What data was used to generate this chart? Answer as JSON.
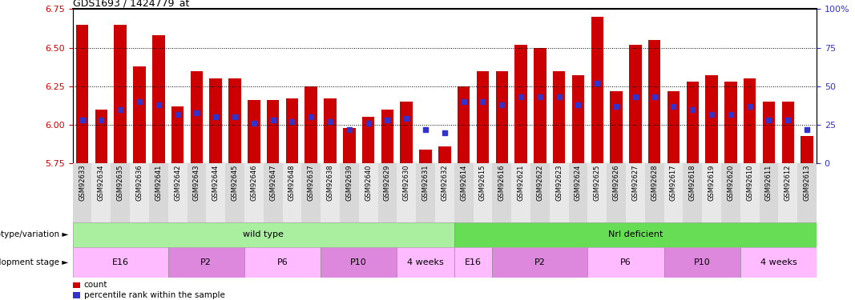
{
  "title": "GDS1693 / 1424779_at",
  "samples": [
    "GSM92633",
    "GSM92634",
    "GSM92635",
    "GSM92636",
    "GSM92641",
    "GSM92642",
    "GSM92643",
    "GSM92644",
    "GSM92645",
    "GSM92646",
    "GSM92647",
    "GSM92648",
    "GSM92637",
    "GSM92638",
    "GSM92639",
    "GSM92640",
    "GSM92629",
    "GSM92630",
    "GSM92631",
    "GSM92632",
    "GSM92614",
    "GSM92615",
    "GSM92616",
    "GSM92621",
    "GSM92622",
    "GSM92623",
    "GSM92624",
    "GSM92625",
    "GSM92626",
    "GSM92627",
    "GSM92628",
    "GSM92617",
    "GSM92618",
    "GSM92619",
    "GSM92620",
    "GSM92610",
    "GSM92611",
    "GSM92612",
    "GSM92613"
  ],
  "bar_values": [
    6.65,
    6.1,
    6.65,
    6.38,
    6.58,
    6.12,
    6.35,
    6.3,
    6.3,
    6.16,
    6.16,
    6.17,
    6.25,
    6.17,
    5.98,
    6.05,
    6.1,
    6.15,
    5.84,
    5.86,
    6.25,
    6.35,
    6.35,
    6.52,
    6.5,
    6.35,
    6.32,
    6.7,
    6.22,
    6.52,
    6.55,
    6.22,
    6.28,
    6.32,
    6.28,
    6.3,
    6.15,
    6.15,
    5.93
  ],
  "blue_pct_values": [
    28,
    28,
    35,
    40,
    38,
    32,
    33,
    30,
    30,
    26,
    28,
    27,
    30,
    27,
    22,
    26,
    28,
    29,
    22,
    20,
    40,
    40,
    38,
    43,
    43,
    43,
    38,
    52,
    37,
    43,
    43,
    37,
    35,
    32,
    32,
    37,
    28,
    28,
    22
  ],
  "ylim_left": [
    5.75,
    6.75
  ],
  "ylim_right": [
    0,
    100
  ],
  "yticks_left": [
    5.75,
    6.0,
    6.25,
    6.5,
    6.75
  ],
  "yticks_right": [
    0,
    25,
    50,
    75,
    100
  ],
  "ytick_labels_right": [
    "0",
    "25",
    "50",
    "75",
    "100%"
  ],
  "bar_color": "#cc0000",
  "blue_color": "#3333cc",
  "left_tick_color": "#cc0000",
  "right_tick_color": "#3333cc",
  "genotype_groups": [
    {
      "label": "wild type",
      "start": 0,
      "end": 20,
      "color": "#aaeea0"
    },
    {
      "label": "Nrl deficient",
      "start": 20,
      "end": 39,
      "color": "#66dd55"
    }
  ],
  "stage_groups": [
    {
      "label": "E16",
      "start": 0,
      "end": 5,
      "color": "#ffbbff"
    },
    {
      "label": "P2",
      "start": 5,
      "end": 9,
      "color": "#dd88dd"
    },
    {
      "label": "P6",
      "start": 9,
      "end": 13,
      "color": "#ffbbff"
    },
    {
      "label": "P10",
      "start": 13,
      "end": 17,
      "color": "#dd88dd"
    },
    {
      "label": "4 weeks",
      "start": 17,
      "end": 20,
      "color": "#ffbbff"
    },
    {
      "label": "E16",
      "start": 20,
      "end": 22,
      "color": "#ffbbff"
    },
    {
      "label": "P2",
      "start": 22,
      "end": 27,
      "color": "#dd88dd"
    },
    {
      "label": "P6",
      "start": 27,
      "end": 31,
      "color": "#ffbbff"
    },
    {
      "label": "P10",
      "start": 31,
      "end": 35,
      "color": "#dd88dd"
    },
    {
      "label": "4 weeks",
      "start": 35,
      "end": 39,
      "color": "#ffbbff"
    }
  ]
}
